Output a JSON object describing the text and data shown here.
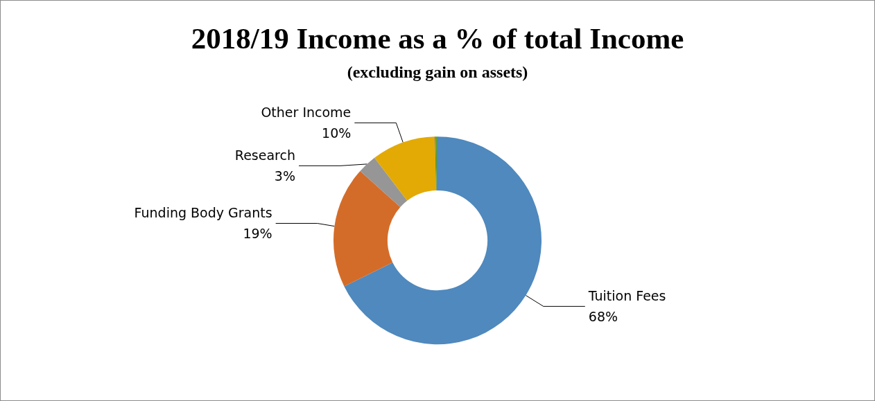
{
  "chart_data": {
    "type": "donut",
    "title": "2018/19 Income as a % of total Income",
    "subtitle": "(excluding gain on assets)",
    "categories": [
      "Tuition Fees",
      "Funding Body Grants",
      "Research",
      "Other Income",
      null,
      null
    ],
    "values": [
      68,
      19,
      3,
      10,
      0.1,
      0.3
    ],
    "value_labels": [
      "68%",
      "19%",
      "3%",
      "10%",
      null,
      null
    ],
    "colors": [
      "#4f89bd",
      "#d46c29",
      "#969696",
      "#e3aa05",
      "#2f4d8f",
      "#5e9a3a"
    ],
    "legend": false
  }
}
